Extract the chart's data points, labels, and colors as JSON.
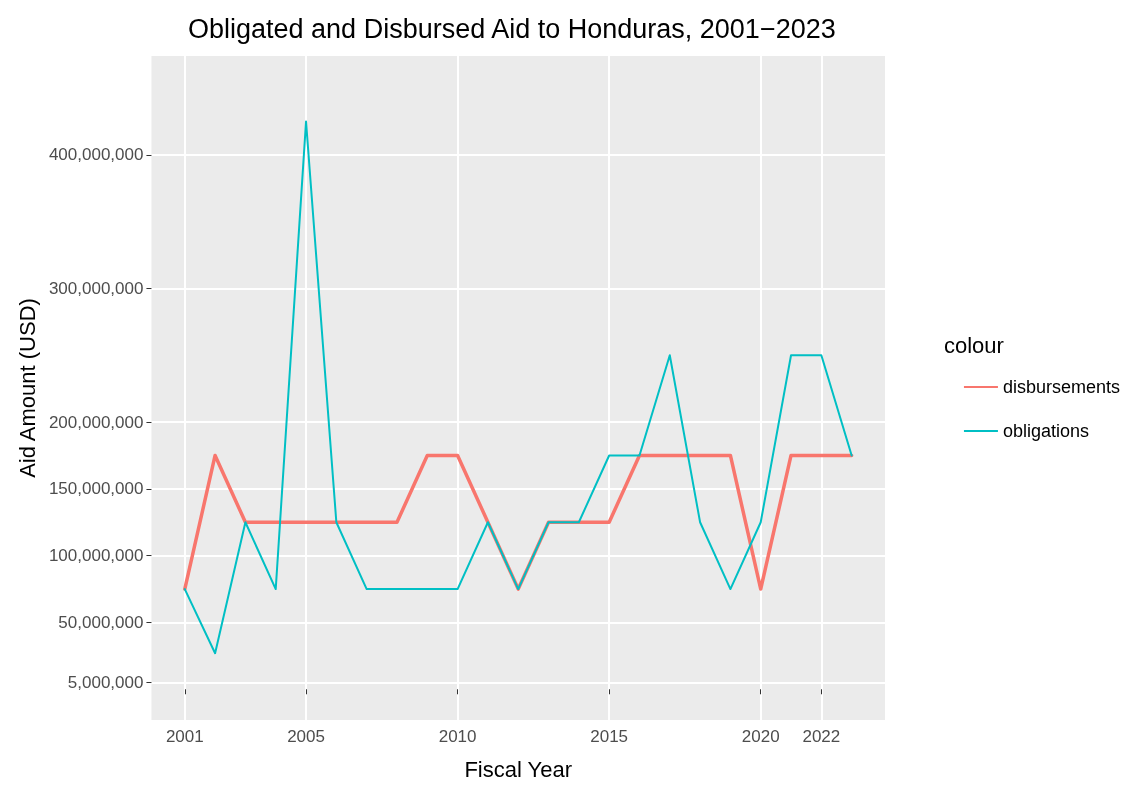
{
  "chart_data": {
    "type": "line",
    "title": "Obligated and Disbursed Aid to Honduras, 2001−2023",
    "xlabel": "Fiscal Year",
    "ylabel": "Aid Amount (USD)",
    "legend_title": "colour",
    "x": [
      2001,
      2002,
      2003,
      2004,
      2005,
      2006,
      2007,
      2008,
      2009,
      2010,
      2011,
      2012,
      2013,
      2014,
      2015,
      2016,
      2017,
      2018,
      2019,
      2020,
      2021,
      2022,
      2023
    ],
    "series": [
      {
        "name": "disbursements",
        "color": "#f8766d",
        "values": [
          75000000,
          175000000,
          125000000,
          125000000,
          125000000,
          125000000,
          125000000,
          125000000,
          175000000,
          175000000,
          125000000,
          75000000,
          125000000,
          125000000,
          125000000,
          175000000,
          175000000,
          175000000,
          175000000,
          75000000,
          175000000,
          175000000,
          175000000
        ]
      },
      {
        "name": "obligations",
        "color": "#00bfc4",
        "values": [
          75000000,
          27000000,
          125000000,
          75000000,
          425000000,
          125000000,
          75000000,
          75000000,
          75000000,
          75000000,
          125000000,
          75000000,
          125000000,
          125000000,
          175000000,
          175000000,
          250000000,
          125000000,
          75000000,
          125000000,
          250000000,
          250000000,
          175000000
        ]
      }
    ],
    "xlim": [
      1999.9,
      2024.1
    ],
    "xticks": [
      2001,
      2005,
      2010,
      2015,
      2020,
      2022
    ],
    "ylim": [
      -23000000,
      474000000
    ],
    "yticks": [
      {
        "value": 5000000,
        "label": "5,000,000"
      },
      {
        "value": 50000000,
        "label": "50,000,000"
      },
      {
        "value": 100000000,
        "label": "100,000,000"
      },
      {
        "value": 150000000,
        "label": "150,000,000"
      },
      {
        "value": 200000000,
        "label": "200,000,000"
      },
      {
        "value": 300000000,
        "label": "300,000,000"
      },
      {
        "value": 400000000,
        "label": "400,000,000"
      }
    ],
    "grid": true,
    "legend": "right",
    "marker": "none",
    "line_style": "solid"
  }
}
